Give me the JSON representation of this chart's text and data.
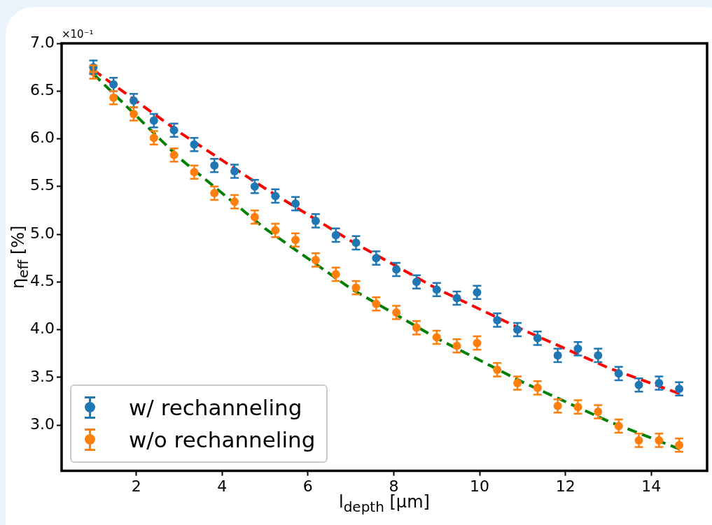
{
  "chart_data": {
    "type": "scatter",
    "xlabel": "l$_{depth}$ [μm]",
    "ylabel": "η$_{eff}$ [%]",
    "annotations": [
      "×10⁻¹"
    ],
    "xlim": [
      0.26,
      15.3
    ],
    "xticks": [
      2,
      4,
      6,
      8,
      10,
      12,
      14
    ],
    "ylim": [
      2.52,
      7.0
    ],
    "yticks": [
      {
        "value": 3,
        "label": "3.0"
      },
      {
        "value": 3.5,
        "label": "3.5"
      },
      {
        "value": 4,
        "label": "4.0"
      },
      {
        "value": 4.5,
        "label": "4.5"
      },
      {
        "value": 5,
        "label": "5.0"
      },
      {
        "value": 5.5,
        "label": "5.5"
      },
      {
        "value": 6,
        "label": "6.0"
      },
      {
        "value": 6.5,
        "label": "6.5"
      },
      {
        "value": 7,
        "label": "7.0"
      }
    ],
    "grid": false,
    "legend": "bottom left",
    "marker": "circle",
    "x": [
      1.0,
      1.47,
      1.94,
      2.41,
      2.88,
      3.35,
      3.82,
      4.29,
      4.76,
      5.24,
      5.71,
      6.18,
      6.65,
      7.12,
      7.59,
      8.06,
      8.53,
      9.0,
      9.47,
      9.94,
      10.41,
      10.88,
      11.35,
      11.82,
      12.29,
      12.76,
      13.24,
      13.71,
      14.18,
      14.65
    ],
    "series": [
      {
        "name": "w/ rechanneling",
        "type": "scatter",
        "color": "#1f77b4",
        "values": [
          6.75,
          6.57,
          6.4,
          6.19,
          6.09,
          5.94,
          5.72,
          5.66,
          5.5,
          5.4,
          5.32,
          5.14,
          4.99,
          4.91,
          4.75,
          4.63,
          4.5,
          4.42,
          4.33,
          4.39,
          4.1,
          4.0,
          3.91,
          3.73,
          3.8,
          3.73,
          3.54,
          3.42,
          3.44,
          3.38
        ],
        "errors": [
          0.07,
          0.07,
          0.07,
          0.07,
          0.07,
          0.07,
          0.07,
          0.07,
          0.07,
          0.07,
          0.07,
          0.07,
          0.07,
          0.07,
          0.07,
          0.07,
          0.07,
          0.07,
          0.07,
          0.07,
          0.07,
          0.07,
          0.07,
          0.07,
          0.07,
          0.07,
          0.07,
          0.07,
          0.07,
          0.07
        ]
      },
      {
        "name": "w/o rechanneling",
        "type": "scatter",
        "color": "#ff7f0e",
        "values": [
          6.7,
          6.43,
          6.26,
          6.01,
          5.83,
          5.65,
          5.43,
          5.34,
          5.18,
          5.04,
          4.94,
          4.73,
          4.58,
          4.44,
          4.27,
          4.18,
          4.02,
          3.92,
          3.83,
          3.86,
          3.58,
          3.44,
          3.39,
          3.2,
          3.19,
          3.14,
          2.99,
          2.84,
          2.84,
          2.79
        ],
        "errors": [
          0.07,
          0.07,
          0.07,
          0.07,
          0.07,
          0.07,
          0.07,
          0.07,
          0.07,
          0.07,
          0.07,
          0.07,
          0.07,
          0.07,
          0.07,
          0.07,
          0.07,
          0.07,
          0.07,
          0.07,
          0.07,
          0.07,
          0.07,
          0.07,
          0.07,
          0.07,
          0.07,
          0.07,
          0.07,
          0.07
        ]
      },
      {
        "type": "line",
        "color": "#ff0000",
        "line_style": "dashed",
        "marker": "none",
        "x": [
          1,
          3,
          5,
          7,
          9,
          11,
          13,
          14.65
        ],
        "values": [
          6.72,
          6.07,
          5.48,
          4.93,
          4.43,
          4.0,
          3.6,
          3.33
        ]
      },
      {
        "type": "line",
        "color": "#008000",
        "line_style": "dashed",
        "marker": "none",
        "x": [
          1,
          3,
          5,
          7,
          9,
          11,
          13,
          14.65
        ],
        "values": [
          6.68,
          5.8,
          5.06,
          4.43,
          3.91,
          3.45,
          3.04,
          2.75
        ]
      }
    ]
  }
}
